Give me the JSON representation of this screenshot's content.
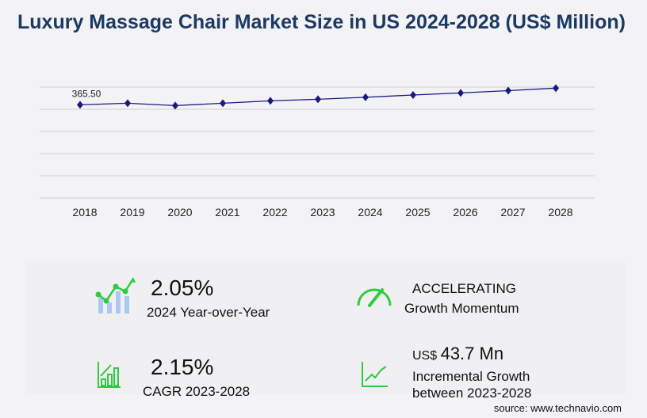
{
  "chart_data": {
    "type": "line",
    "title": "Luxury Massage Chair Market Size in US 2024-2028 (US$ Million)",
    "categories": [
      "2018",
      "2019",
      "2020",
      "2021",
      "2022",
      "2023",
      "2024",
      "2025",
      "2026",
      "2027",
      "2028"
    ],
    "values": [
      365.5,
      371.7,
      362.4,
      371.7,
      381.0,
      387.2,
      395.1,
      404.0,
      412.0,
      421.0,
      430.9
    ],
    "data_labels": {
      "2018": "365.50"
    },
    "ylim": [
      0,
      435
    ],
    "grid": true,
    "line_color": "#1a1a80",
    "xlabel": "",
    "ylabel": ""
  },
  "stats": {
    "yoy_value": "2.05%",
    "yoy_label": "2024 Year-over-Year",
    "momentum_value": "ACCELERATING",
    "momentum_label": "Growth Momentum",
    "cagr_value": "2.15%",
    "cagr_label": "CAGR 2023-2028",
    "incr_prefix": "US$",
    "incr_value": "43.7 Mn",
    "incr_label1": "Incremental Growth",
    "incr_label2": "between 2023-2028"
  },
  "source": "source: www.technavio.com",
  "colors": {
    "accent_green": "#2ecc40",
    "bar_blue": "#aac8f0",
    "title": "#1d3a63"
  }
}
